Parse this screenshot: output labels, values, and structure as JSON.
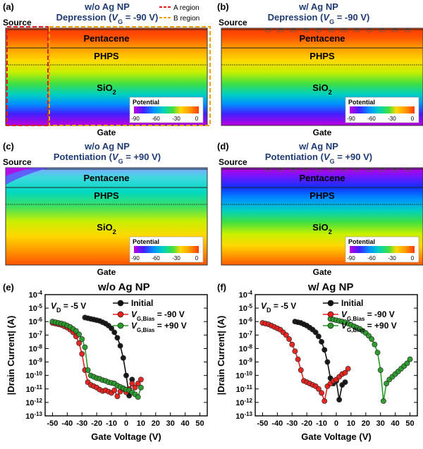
{
  "simulations": [
    {
      "letter": "(a)",
      "title_line1": "w/o Ag NP",
      "title_line2_prefix": "Depression (",
      "title_line2_var": "V",
      "title_line2_sub": "G",
      "title_line2_suffix": " = -90 V)",
      "source": "Source",
      "pentacene": "Pentacene",
      "phps": "PHPS",
      "sio2": "SiO",
      "sio2_sub": "2",
      "gate": "Gate",
      "legend_title": "Potential",
      "legend_ticks": [
        "-90",
        "-60",
        "-30",
        "0"
      ],
      "regions": [
        "A region",
        "B region"
      ],
      "mode": "depression"
    },
    {
      "letter": "(b)",
      "title_line1": "w/ Ag NP",
      "title_line2_prefix": "Depression (",
      "title_line2_var": "V",
      "title_line2_sub": "G",
      "title_line2_suffix": " = -90 V)",
      "source": "Source",
      "pentacene": "Pentacene",
      "phps": "PHPS",
      "sio2": "SiO",
      "sio2_sub": "2",
      "gate": "Gate",
      "legend_title": "Potential",
      "legend_ticks": [
        "-90",
        "-60",
        "-30",
        "0"
      ],
      "mode": "depression"
    },
    {
      "letter": "(c)",
      "title_line1": "w/o Ag NP",
      "title_line2_prefix": "Potentiation (",
      "title_line2_var": "V",
      "title_line2_sub": "G",
      "title_line2_suffix": " = +90 V)",
      "source": "Source",
      "pentacene": "Pentacene",
      "phps": "PHPS",
      "sio2": "SiO",
      "sio2_sub": "2",
      "gate": "Gate",
      "legend_title": "Potential",
      "legend_ticks": [
        "-90",
        "-60",
        "-30",
        "0"
      ],
      "mode": "potentiation_noNP"
    },
    {
      "letter": "(d)",
      "title_line1": "w/ Ag NP",
      "title_line2_prefix": "Potentiation (",
      "title_line2_var": "V",
      "title_line2_sub": "G",
      "title_line2_suffix": " = +90 V)",
      "source": "Source",
      "pentacene": "Pentacene",
      "phps": "PHPS",
      "sio2": "SiO",
      "sio2_sub": "2",
      "gate": "Gate",
      "legend_title": "Potential",
      "legend_ticks": [
        "-90",
        "-60",
        "-30",
        "0"
      ],
      "mode": "potentiation_NP"
    }
  ],
  "chart_data": [
    {
      "type": "scatter",
      "letter": "(e)",
      "title": "w/o Ag NP",
      "annotation": "V_D = -5 V",
      "annotation_parts": {
        "var": "V",
        "sub": "D",
        "rest": " = -5 V"
      },
      "xlabel": "Gate Voltage (V)",
      "ylabel": "|Drain Current| (A)",
      "xlim": [
        -55,
        55
      ],
      "ylim_exp": [
        -13,
        -4
      ],
      "xticks": [
        "-50",
        "-40",
        "-30",
        "-20",
        "-10",
        "0",
        "10",
        "20",
        "30",
        "40",
        "50"
      ],
      "ytick_exps": [
        "-4",
        "-5",
        "-6",
        "-7",
        "-8",
        "-9",
        "-10",
        "-11",
        "-12",
        "-13"
      ],
      "legend": [
        "Initial",
        "V_G,Bias = -90 V",
        "V_G,Bias = +90 V"
      ],
      "series": [
        {
          "name": "Initial",
          "color": "#111111",
          "x": [
            -28,
            -26,
            -24,
            -22,
            -20,
            -18,
            -16,
            -14,
            -12,
            -10,
            -8,
            -6,
            -4,
            -2,
            0,
            2,
            4
          ],
          "log10_y": [
            -5.7,
            -5.75,
            -5.8,
            -5.85,
            -5.9,
            -5.95,
            -6.05,
            -6.15,
            -6.3,
            -6.5,
            -6.8,
            -7.2,
            -7.8,
            -8.7,
            -10,
            -11.5,
            -10.3
          ]
        },
        {
          "name": "V_G,Bias = -90 V",
          "color": "#e8201c",
          "x": [
            -50,
            -48,
            -46,
            -44,
            -42,
            -40,
            -38,
            -36,
            -34,
            -32,
            -30,
            -28,
            -26,
            -24,
            -22,
            -20,
            -18,
            -16,
            -14,
            -12,
            -10,
            -8,
            -6,
            -4,
            -2,
            0,
            2,
            4,
            6,
            8,
            10
          ],
          "log10_y": [
            -6.1,
            -6.15,
            -6.2,
            -6.25,
            -6.35,
            -6.45,
            -6.6,
            -6.8,
            -7.1,
            -7.6,
            -8.4,
            -9.6,
            -10.5,
            -10.7,
            -10.8,
            -10.9,
            -11.05,
            -11.15,
            -11.1,
            -11.2,
            -11.3,
            -11.1,
            -11.55,
            -11.2,
            -11.0,
            -11.25,
            -11.0,
            -10.6,
            -10.9,
            -10.6,
            -10.3
          ]
        },
        {
          "name": "V_G,Bias = +90 V",
          "color": "#2a9a2a",
          "x": [
            -50,
            -48,
            -46,
            -44,
            -42,
            -40,
            -38,
            -36,
            -34,
            -32,
            -30,
            -28,
            -26,
            -24,
            -22,
            -20,
            -18,
            -16,
            -14,
            -12,
            -10,
            -8,
            -6,
            -4,
            -2,
            0,
            2,
            4,
            6,
            8,
            10
          ],
          "log10_y": [
            -6.0,
            -6.05,
            -6.1,
            -6.15,
            -6.2,
            -6.3,
            -6.4,
            -6.55,
            -6.7,
            -6.95,
            -7.3,
            -7.9,
            -9.6,
            -10.0,
            -10.1,
            -10.2,
            -10.25,
            -10.35,
            -10.4,
            -10.5,
            -10.55,
            -10.6,
            -10.75,
            -10.85,
            -10.95,
            -11.05,
            -11.1,
            -11.25,
            -11.4,
            -11.6,
            -10.9
          ]
        }
      ]
    },
    {
      "type": "scatter",
      "letter": "(f)",
      "title": "w/ Ag NP",
      "annotation": "V_D = -5 V",
      "annotation_parts": {
        "var": "V",
        "sub": "D",
        "rest": " = -5 V"
      },
      "xlabel": "Gate Voltage (V)",
      "ylabel": "|Drain Current| (A)",
      "xlim": [
        -55,
        55
      ],
      "ylim_exp": [
        -13,
        -4
      ],
      "xticks": [
        "-50",
        "-40",
        "-30",
        "-20",
        "-10",
        "0",
        "10",
        "20",
        "30",
        "40",
        "50"
      ],
      "ytick_exps": [
        "-4",
        "-5",
        "-6",
        "-7",
        "-8",
        "-9",
        "-10",
        "-11",
        "-12",
        "-13"
      ],
      "legend": [
        "Initial",
        "V_G,Bias = -90 V",
        "V_G,Bias = +90 V"
      ],
      "series": [
        {
          "name": "Initial",
          "color": "#111111",
          "x": [
            -28,
            -26,
            -24,
            -22,
            -20,
            -18,
            -16,
            -14,
            -12,
            -10,
            -8,
            -6,
            -4,
            -2,
            0,
            2,
            4,
            6
          ],
          "log10_y": [
            -6.0,
            -6.05,
            -6.1,
            -6.2,
            -6.3,
            -6.45,
            -6.6,
            -6.8,
            -7.1,
            -7.5,
            -8.1,
            -9.0,
            -10.2,
            -10.6,
            -10.4,
            -11.8,
            -10.7,
            -10.5
          ]
        },
        {
          "name": "V_G,Bias = -90 V",
          "color": "#e8201c",
          "x": [
            -50,
            -48,
            -46,
            -44,
            -42,
            -40,
            -38,
            -36,
            -34,
            -32,
            -30,
            -28,
            -26,
            -24,
            -22,
            -20,
            -18,
            -16,
            -14,
            -12,
            -10,
            -8,
            -6,
            -4,
            -2,
            0,
            2,
            4,
            6,
            8
          ],
          "log10_y": [
            -6.1,
            -6.15,
            -6.2,
            -6.3,
            -6.4,
            -6.5,
            -6.6,
            -6.8,
            -7.0,
            -7.3,
            -7.7,
            -8.2,
            -8.8,
            -9.6,
            -10.4,
            -10.5,
            -10.6,
            -10.7,
            -10.8,
            -11.0,
            -11.3,
            -11.9,
            -10.8,
            -10.6,
            -10.4,
            -10.3,
            -10.1,
            -9.9,
            -9.8,
            -9.5
          ]
        },
        {
          "name": "V_G,Bias = +90 V",
          "color": "#2a9a2a",
          "x": [
            -4,
            -2,
            0,
            2,
            4,
            6,
            8,
            10,
            12,
            14,
            16,
            18,
            20,
            22,
            24,
            26,
            28,
            30,
            32,
            34,
            36,
            38,
            40,
            42,
            44,
            46,
            48,
            50
          ],
          "log10_y": [
            -5.8,
            -5.85,
            -5.9,
            -5.95,
            -6.0,
            -6.05,
            -6.15,
            -6.25,
            -6.35,
            -6.45,
            -6.55,
            -6.7,
            -6.85,
            -7.05,
            -7.3,
            -7.7,
            -8.3,
            -9.6,
            -11.9,
            -10.6,
            -10.3,
            -10.1,
            -9.9,
            -9.7,
            -9.5,
            -9.3,
            -9.1,
            -8.8
          ]
        }
      ]
    }
  ]
}
